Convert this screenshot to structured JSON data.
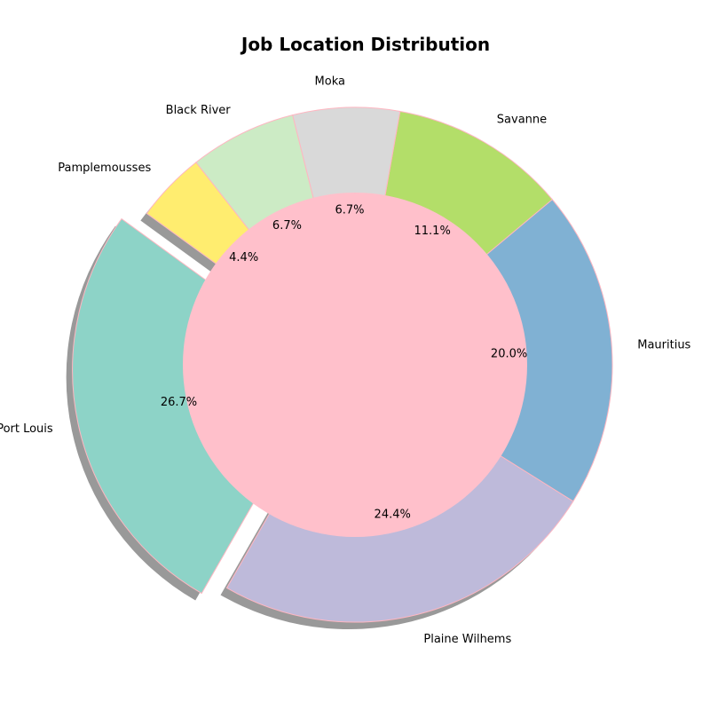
{
  "chart_data": {
    "type": "pie",
    "title": "Job Location Distribution",
    "donut": true,
    "center_color": "#ffc0cb",
    "edge_color": "#ffb6c1",
    "shadow": true,
    "start_angle_deg": 144,
    "direction": "counterclockwise",
    "slices": [
      {
        "label": "Port Louis",
        "percent_label": "26.7%",
        "value": 26.7,
        "color": "#8dd3c7",
        "exploded": true
      },
      {
        "label": "Plaine Wilhems",
        "percent_label": "24.4%",
        "value": 24.4,
        "color": "#bebada",
        "exploded": false
      },
      {
        "label": "Mauritius",
        "percent_label": "20.0%",
        "value": 20.0,
        "color": "#80b1d3",
        "exploded": false
      },
      {
        "label": "Savanne",
        "percent_label": "11.1%",
        "value": 11.1,
        "color": "#b3de69",
        "exploded": false
      },
      {
        "label": "Moka",
        "percent_label": "6.7%",
        "value": 6.7,
        "color": "#d9d9d9",
        "exploded": false
      },
      {
        "label": "Black River",
        "percent_label": "6.7%",
        "value": 6.7,
        "color": "#ccebc5",
        "exploded": false
      },
      {
        "label": "Pamplemousses",
        "percent_label": "4.4%",
        "value": 4.4,
        "color": "#ffed6f",
        "exploded": false
      }
    ]
  }
}
